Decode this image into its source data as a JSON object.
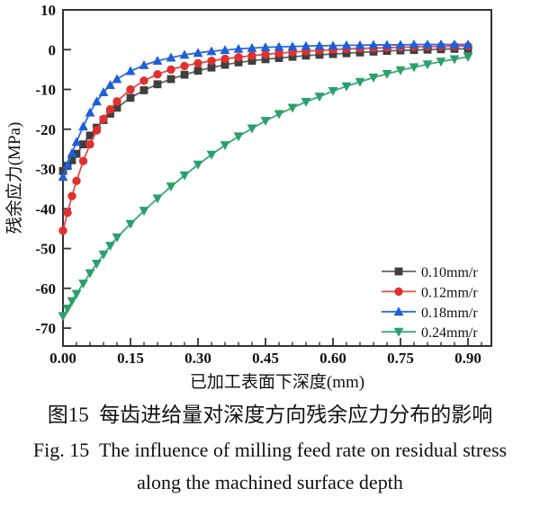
{
  "figure": {
    "caption_cn": "图15  每齿进给量对深度方向残余应力分布的影响",
    "caption_en_1": "Fig. 15  The influence of milling feed rate on residual stress",
    "caption_en_2": "along the machined surface depth"
  },
  "chart_data": {
    "type": "line",
    "title": "",
    "xlabel": "已加工表面下深度(mm)",
    "ylabel": "残余应力(MPa)",
    "xlim": [
      0,
      0.952
    ],
    "ylim": [
      -74.5,
      10
    ],
    "x_major_ticks": [
      0.0,
      0.15,
      0.3,
      0.45,
      0.6,
      0.75,
      0.9
    ],
    "x_minor_step": 0.03,
    "y_major_ticks": [
      10,
      0,
      -10,
      -20,
      -30,
      -40,
      -50,
      -60,
      -70
    ],
    "grid": false,
    "legend_position": "lower-right",
    "axis_color": "#333333",
    "x": [
      0,
      0.01,
      0.02,
      0.03,
      0.045,
      0.06,
      0.075,
      0.09,
      0.105,
      0.12,
      0.15,
      0.18,
      0.21,
      0.24,
      0.27,
      0.3,
      0.33,
      0.36,
      0.39,
      0.42,
      0.45,
      0.48,
      0.51,
      0.54,
      0.57,
      0.6,
      0.63,
      0.66,
      0.69,
      0.72,
      0.75,
      0.78,
      0.81,
      0.84,
      0.87,
      0.9
    ],
    "series": [
      {
        "name": "0.10mm/r",
        "marker": "square",
        "color": "#3f3f3f",
        "line_color": "#636363",
        "values": [
          -30.5,
          -29.2,
          -27.8,
          -26.2,
          -23.8,
          -21.6,
          -19.6,
          -17.7,
          -16.1,
          -14.6,
          -12.1,
          -10.2,
          -8.7,
          -7.4,
          -6.3,
          -5.3,
          -4.5,
          -3.8,
          -3.2,
          -2.8,
          -2.4,
          -2.1,
          -1.8,
          -1.5,
          -1.3,
          -1.1,
          -0.9,
          -0.7,
          -0.5,
          -0.3,
          -0.2,
          -0.1,
          0.0,
          0.1,
          0.2,
          0.2
        ]
      },
      {
        "name": "0.12mm/r",
        "marker": "circle",
        "color": "#e0312f",
        "line_color": "#ea4a47",
        "values": [
          -45.5,
          -41.0,
          -36.8,
          -33.0,
          -28.0,
          -23.8,
          -20.3,
          -17.4,
          -15.0,
          -13.0,
          -10.0,
          -7.8,
          -6.2,
          -5.0,
          -4.1,
          -3.4,
          -2.8,
          -2.3,
          -1.9,
          -1.5,
          -1.2,
          -0.9,
          -0.6,
          -0.4,
          -0.2,
          0.0,
          0.2,
          0.3,
          0.4,
          0.5,
          0.6,
          0.7,
          0.8,
          0.8,
          0.9,
          0.9
        ]
      },
      {
        "name": "0.18mm/r",
        "marker": "triangle-up",
        "color": "#1f5fd6",
        "line_color": "#2b6bd8",
        "values": [
          -32.0,
          -29.0,
          -26.0,
          -23.2,
          -19.3,
          -15.8,
          -13.0,
          -10.7,
          -8.9,
          -7.4,
          -5.4,
          -3.9,
          -2.8,
          -2.0,
          -1.3,
          -0.8,
          -0.4,
          -0.1,
          0.2,
          0.4,
          0.6,
          0.7,
          0.8,
          0.9,
          1.0,
          1.0,
          1.1,
          1.1,
          1.2,
          1.2,
          1.2,
          1.3,
          1.3,
          1.3,
          1.3,
          1.3
        ]
      },
      {
        "name": "0.24mm/r",
        "marker": "triangle-down",
        "color": "#2aa06a",
        "line_color": "#35ab75",
        "values": [
          -67.0,
          -65.1,
          -63.2,
          -61.4,
          -58.8,
          -56.2,
          -53.8,
          -51.5,
          -49.3,
          -47.2,
          -43.8,
          -40.5,
          -37.4,
          -34.4,
          -31.6,
          -28.9,
          -26.4,
          -24.0,
          -21.8,
          -19.8,
          -17.9,
          -16.2,
          -14.6,
          -13.1,
          -11.8,
          -10.4,
          -9.2,
          -8.1,
          -7.0,
          -6.1,
          -5.2,
          -4.4,
          -3.7,
          -3.0,
          -2.4,
          -1.8
        ]
      }
    ]
  }
}
